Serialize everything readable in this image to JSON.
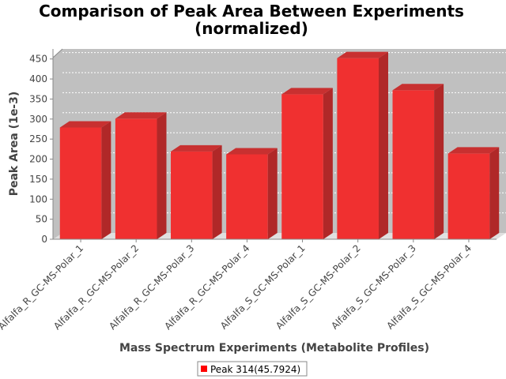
{
  "chart_data": {
    "type": "bar",
    "title": "Comparison of Peak Area Between Experiments",
    "subtitle": "(normalized)",
    "xlabel": "Mass Spectrum Experiments (Metabolite Profiles)",
    "ylabel": "Peak Area (1e-3)",
    "ylim": [
      0,
      475
    ],
    "yticks": [
      0,
      50,
      100,
      150,
      200,
      250,
      300,
      350,
      400,
      450
    ],
    "categories": [
      "Alfalfa_R_GC-MS-Polar_1",
      "Alfalfa_R_GC-MS-Polar_2",
      "Alfalfa_R_GC-MS-Polar_3",
      "Alfalfa_R_GC-MS-Polar_4",
      "Alfalfa_S_GC-MS-Polar_1",
      "Alfalfa_S_GC-MS-Polar_2",
      "Alfalfa_S_GC-MS-Polar_3",
      "Alfalfa_S_GC-MS-Polar_4"
    ],
    "series": [
      {
        "name": "Peak 314(45.7924)",
        "color": "#ff0000",
        "values": [
          279,
          301,
          219,
          212,
          362,
          452,
          372,
          214
        ]
      }
    ],
    "grid": true,
    "legend_position": "bottom",
    "rendering": "3d-bar",
    "plot_background": "#c0c0c0"
  }
}
